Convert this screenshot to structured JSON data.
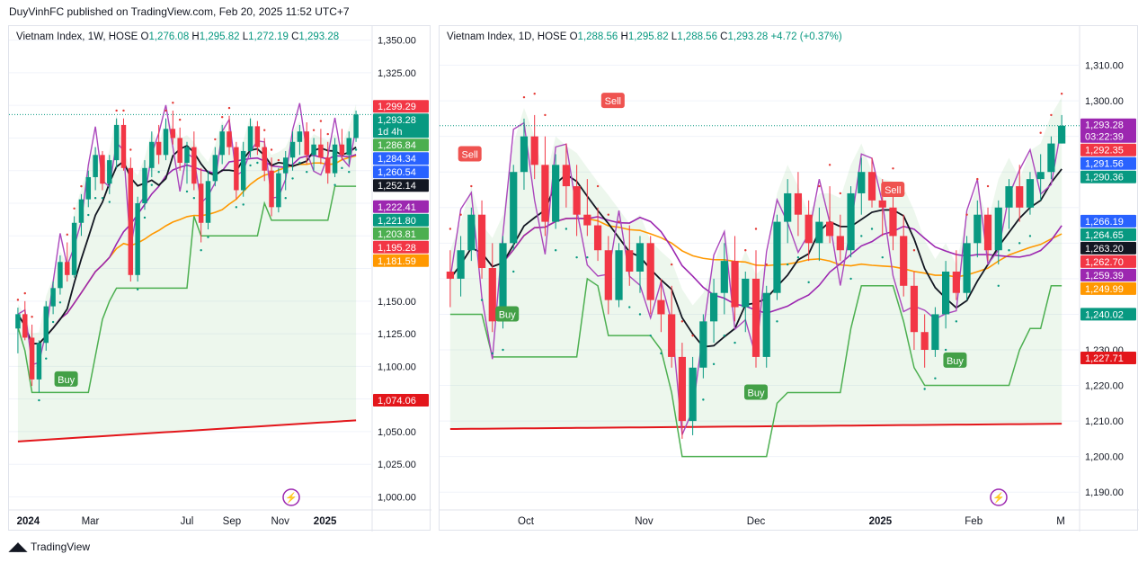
{
  "header": {
    "publisher": "DuyVinhFC published on TradingView.com, Feb 20, 2025 11:52 UTC+7"
  },
  "footer": {
    "brand": "TradingView",
    "logo_icon": "tradingview-logo-icon"
  },
  "colors": {
    "up": "#089981",
    "down": "#f23645",
    "ma20": "#131722",
    "ma50": "#9c27b0",
    "ma100": "#ff9800",
    "ma200": "#e3161b",
    "stop": "#4caf50",
    "rsi": "#ab47bc",
    "sar": "#e53935"
  },
  "chart_data": [
    {
      "type": "candlestick",
      "title": "Vietnam Index, 1W, HOSE",
      "ohlc_labels": {
        "o": "O",
        "h": "H",
        "l": "L",
        "c": "C"
      },
      "ohlc": {
        "open": "1,276.08",
        "high": "1,295.82",
        "low": "1,272.19",
        "close": "1,293.28"
      },
      "ylim": [
        990,
        1358
      ],
      "y_ticks": [
        1000,
        1025,
        1050,
        1075,
        1100,
        1125,
        1150,
        1175,
        1200,
        1225,
        1250,
        1275,
        1300,
        1325,
        1350
      ],
      "y_tick_labels": [
        "1,000.00",
        "1,025.00",
        "1,050.00",
        "",
        "1,100.00",
        "1,125.00",
        "1,150.00",
        "",
        "",
        "",
        "",
        "",
        "",
        "1,325.00",
        "1,350.00"
      ],
      "x_labels": [
        {
          "t": 0.04,
          "label": "2024",
          "bold": true
        },
        {
          "t": 0.22,
          "label": "Mar",
          "bold": false
        },
        {
          "t": 0.5,
          "label": "Jul",
          "bold": false
        },
        {
          "t": 0.63,
          "label": "Sep",
          "bold": false
        },
        {
          "t": 0.77,
          "label": "Nov",
          "bold": false
        },
        {
          "t": 0.9,
          "label": "2025",
          "bold": true
        }
      ],
      "price_labels": [
        {
          "v": 1299.29,
          "label": "1,299.29",
          "bg": "#f23645"
        },
        {
          "v": 1293.28,
          "label": "1,293.28",
          "sub": "1d 4h",
          "bg": "#089981"
        },
        {
          "v": 1286.84,
          "label": "1,286.84",
          "bg": "#4caf50"
        },
        {
          "v": 1284.34,
          "label": "1,284.34",
          "bg": "#2962ff"
        },
        {
          "v": 1260.54,
          "label": "1,260.54",
          "bg": "#2962ff"
        },
        {
          "v": 1252.14,
          "label": "1,252.14",
          "bg": "#131722"
        },
        {
          "v": 1222.41,
          "label": "1,222.41",
          "bg": "#9c27b0"
        },
        {
          "v": 1221.8,
          "label": "1,221.80",
          "bg": "#089981"
        },
        {
          "v": 1203.81,
          "label": "1,203.81",
          "bg": "#4caf50"
        },
        {
          "v": 1195.28,
          "label": "1,195.28",
          "bg": "#f23645"
        },
        {
          "v": 1181.59,
          "label": "1,181.59",
          "bg": "#ff9800"
        },
        {
          "v": 1074.06,
          "label": "1,074.06",
          "bg": "#e3161b"
        }
      ],
      "signals": [
        {
          "label": "Buy",
          "t": 0.15,
          "v": 1090,
          "kind": "buy"
        }
      ],
      "candles": [
        [
          1129,
          1145,
          1110,
          1140
        ],
        [
          1140,
          1150,
          1120,
          1122
        ],
        [
          1122,
          1132,
          1085,
          1090
        ],
        [
          1090,
          1120,
          1080,
          1118
        ],
        [
          1118,
          1150,
          1112,
          1146
        ],
        [
          1146,
          1165,
          1140,
          1160
        ],
        [
          1160,
          1185,
          1155,
          1180
        ],
        [
          1180,
          1195,
          1165,
          1170
        ],
        [
          1170,
          1215,
          1168,
          1210
        ],
        [
          1210,
          1232,
          1200,
          1228
        ],
        [
          1228,
          1250,
          1222,
          1245
        ],
        [
          1245,
          1268,
          1235,
          1262
        ],
        [
          1262,
          1265,
          1235,
          1240
        ],
        [
          1240,
          1262,
          1232,
          1258
        ],
        [
          1258,
          1290,
          1252,
          1285
        ],
        [
          1285,
          1290,
          1250,
          1252
        ],
        [
          1252,
          1260,
          1165,
          1170
        ],
        [
          1170,
          1230,
          1165,
          1225
        ],
        [
          1225,
          1258,
          1220,
          1252
        ],
        [
          1252,
          1280,
          1245,
          1272
        ],
        [
          1272,
          1285,
          1255,
          1262
        ],
        [
          1262,
          1290,
          1258,
          1282
        ],
        [
          1282,
          1296,
          1270,
          1275
        ],
        [
          1275,
          1283,
          1250,
          1256
        ],
        [
          1256,
          1272,
          1240,
          1268
        ],
        [
          1268,
          1280,
          1235,
          1240
        ],
        [
          1240,
          1252,
          1195,
          1210
        ],
        [
          1210,
          1250,
          1205,
          1242
        ],
        [
          1242,
          1268,
          1238,
          1262
        ],
        [
          1262,
          1285,
          1255,
          1280
        ],
        [
          1280,
          1292,
          1262,
          1268
        ],
        [
          1268,
          1272,
          1228,
          1235
        ],
        [
          1235,
          1272,
          1230,
          1265
        ],
        [
          1265,
          1290,
          1260,
          1284
        ],
        [
          1284,
          1288,
          1262,
          1268
        ],
        [
          1268,
          1275,
          1242,
          1250
        ],
        [
          1250,
          1260,
          1215,
          1222
        ],
        [
          1222,
          1252,
          1218,
          1248
        ],
        [
          1248,
          1265,
          1235,
          1260
        ],
        [
          1260,
          1280,
          1250,
          1272
        ],
        [
          1272,
          1285,
          1262,
          1280
        ],
        [
          1280,
          1287,
          1255,
          1262
        ],
        [
          1262,
          1275,
          1250,
          1270
        ],
        [
          1270,
          1282,
          1255,
          1260
        ],
        [
          1260,
          1272,
          1240,
          1248
        ],
        [
          1248,
          1275,
          1245,
          1270
        ],
        [
          1270,
          1282,
          1258,
          1262
        ],
        [
          1262,
          1280,
          1255,
          1275
        ],
        [
          1275,
          1296,
          1272,
          1293
        ]
      ]
    },
    {
      "type": "candlestick",
      "title": "Vietnam Index, 1D, HOSE",
      "ohlc_labels": {
        "o": "O",
        "h": "H",
        "l": "L",
        "c": "C"
      },
      "ohlc": {
        "open": "1,288.56",
        "high": "1,295.82",
        "low": "1,288.56",
        "close": "1,293.28",
        "change": "+4.72 (+0.37%)"
      },
      "ylim": [
        1185,
        1320
      ],
      "y_ticks": [
        1190,
        1200,
        1210,
        1220,
        1230,
        1240,
        1250,
        1260,
        1270,
        1280,
        1290,
        1300,
        1310
      ],
      "y_tick_labels": [
        "1,190.00",
        "1,200.00",
        "1,210.00",
        "1,220.00",
        "1,230.00",
        "",
        "",
        "",
        "",
        "",
        "",
        "1,300.00",
        "1,310.00"
      ],
      "x_labels": [
        {
          "t": 0.13,
          "label": "Oct",
          "bold": false
        },
        {
          "t": 0.32,
          "label": "Nov",
          "bold": false
        },
        {
          "t": 0.5,
          "label": "Dec",
          "bold": false
        },
        {
          "t": 0.7,
          "label": "2025",
          "bold": true
        },
        {
          "t": 0.85,
          "label": "Feb",
          "bold": false
        },
        {
          "t": 0.99,
          "label": "M",
          "bold": false
        }
      ],
      "price_labels": [
        {
          "v": 1293.28,
          "label": "1,293.28",
          "sub": "03:22:39",
          "bg": "#9c27b0"
        },
        {
          "v": 1292.35,
          "label": "1,292.35",
          "bg": "#f23645"
        },
        {
          "v": 1291.56,
          "label": "1,291.56",
          "bg": "#2962ff"
        },
        {
          "v": 1290.36,
          "label": "1,290.36",
          "bg": "#089981"
        },
        {
          "v": 1266.19,
          "label": "1,266.19",
          "bg": "#2962ff"
        },
        {
          "v": 1264.65,
          "label": "1,264.65",
          "bg": "#089981"
        },
        {
          "v": 1263.2,
          "label": "1,263.20",
          "bg": "#131722"
        },
        {
          "v": 1262.7,
          "label": "1,262.70",
          "bg": "#f23645"
        },
        {
          "v": 1259.39,
          "label": "1,259.39",
          "bg": "#9c27b0"
        },
        {
          "v": 1249.99,
          "label": "1,249.99",
          "bg": "#ff9800"
        },
        {
          "v": 1240.02,
          "label": "1,240.02",
          "bg": "#089981"
        },
        {
          "v": 1227.71,
          "label": "1,227.71",
          "bg": "#e3161b"
        }
      ],
      "signals": [
        {
          "label": "Sell",
          "t": 0.04,
          "v": 1285,
          "kind": "sell"
        },
        {
          "label": "Buy",
          "t": 0.1,
          "v": 1240,
          "kind": "buy"
        },
        {
          "label": "Sell",
          "t": 0.27,
          "v": 1300,
          "kind": "sell"
        },
        {
          "label": "Buy",
          "t": 0.5,
          "v": 1218,
          "kind": "buy"
        },
        {
          "label": "Sell",
          "t": 0.72,
          "v": 1275,
          "kind": "sell"
        },
        {
          "label": "Buy",
          "t": 0.82,
          "v": 1227,
          "kind": "buy"
        }
      ],
      "candles": [
        [
          1252,
          1258,
          1242,
          1250
        ],
        [
          1250,
          1262,
          1245,
          1258
        ],
        [
          1258,
          1270,
          1255,
          1268
        ],
        [
          1268,
          1272,
          1250,
          1253
        ],
        [
          1253,
          1260,
          1235,
          1238
        ],
        [
          1238,
          1262,
          1236,
          1260
        ],
        [
          1260,
          1282,
          1258,
          1280
        ],
        [
          1280,
          1295,
          1275,
          1290
        ],
        [
          1290,
          1296,
          1278,
          1282
        ],
        [
          1282,
          1290,
          1262,
          1266
        ],
        [
          1266,
          1285,
          1264,
          1282
        ],
        [
          1282,
          1288,
          1270,
          1276
        ],
        [
          1276,
          1282,
          1262,
          1268
        ],
        [
          1268,
          1278,
          1262,
          1265
        ],
        [
          1265,
          1270,
          1255,
          1258
        ],
        [
          1258,
          1262,
          1240,
          1244
        ],
        [
          1244,
          1260,
          1242,
          1258
        ],
        [
          1258,
          1265,
          1248,
          1252
        ],
        [
          1252,
          1262,
          1246,
          1260
        ],
        [
          1260,
          1262,
          1240,
          1244
        ],
        [
          1244,
          1250,
          1235,
          1240
        ],
        [
          1240,
          1248,
          1225,
          1228
        ],
        [
          1228,
          1232,
          1205,
          1210
        ],
        [
          1210,
          1228,
          1206,
          1225
        ],
        [
          1225,
          1240,
          1222,
          1238
        ],
        [
          1238,
          1250,
          1232,
          1246
        ],
        [
          1246,
          1260,
          1240,
          1255
        ],
        [
          1255,
          1262,
          1238,
          1242
        ],
        [
          1242,
          1252,
          1235,
          1250
        ],
        [
          1250,
          1258,
          1225,
          1228
        ],
        [
          1228,
          1248,
          1225,
          1246
        ],
        [
          1246,
          1268,
          1244,
          1266
        ],
        [
          1266,
          1278,
          1260,
          1274
        ],
        [
          1274,
          1280,
          1262,
          1268
        ],
        [
          1268,
          1272,
          1255,
          1260
        ],
        [
          1260,
          1270,
          1255,
          1266
        ],
        [
          1266,
          1276,
          1260,
          1262
        ],
        [
          1262,
          1268,
          1255,
          1258
        ],
        [
          1258,
          1276,
          1256,
          1274
        ],
        [
          1274,
          1284,
          1268,
          1280
        ],
        [
          1280,
          1284,
          1270,
          1272
        ],
        [
          1272,
          1278,
          1262,
          1270
        ],
        [
          1270,
          1275,
          1258,
          1262
        ],
        [
          1262,
          1268,
          1245,
          1248
        ],
        [
          1248,
          1252,
          1230,
          1235
        ],
        [
          1235,
          1240,
          1225,
          1230
        ],
        [
          1230,
          1242,
          1228,
          1240
        ],
        [
          1240,
          1255,
          1236,
          1252
        ],
        [
          1252,
          1258,
          1244,
          1246
        ],
        [
          1246,
          1262,
          1244,
          1260
        ],
        [
          1260,
          1272,
          1256,
          1268
        ],
        [
          1268,
          1270,
          1255,
          1258
        ],
        [
          1258,
          1272,
          1254,
          1270
        ],
        [
          1270,
          1278,
          1264,
          1276
        ],
        [
          1276,
          1282,
          1266,
          1270
        ],
        [
          1270,
          1280,
          1268,
          1278
        ],
        [
          1278,
          1285,
          1272,
          1280
        ],
        [
          1280,
          1290,
          1278,
          1288
        ],
        [
          1288,
          1296,
          1288,
          1293
        ]
      ]
    }
  ]
}
